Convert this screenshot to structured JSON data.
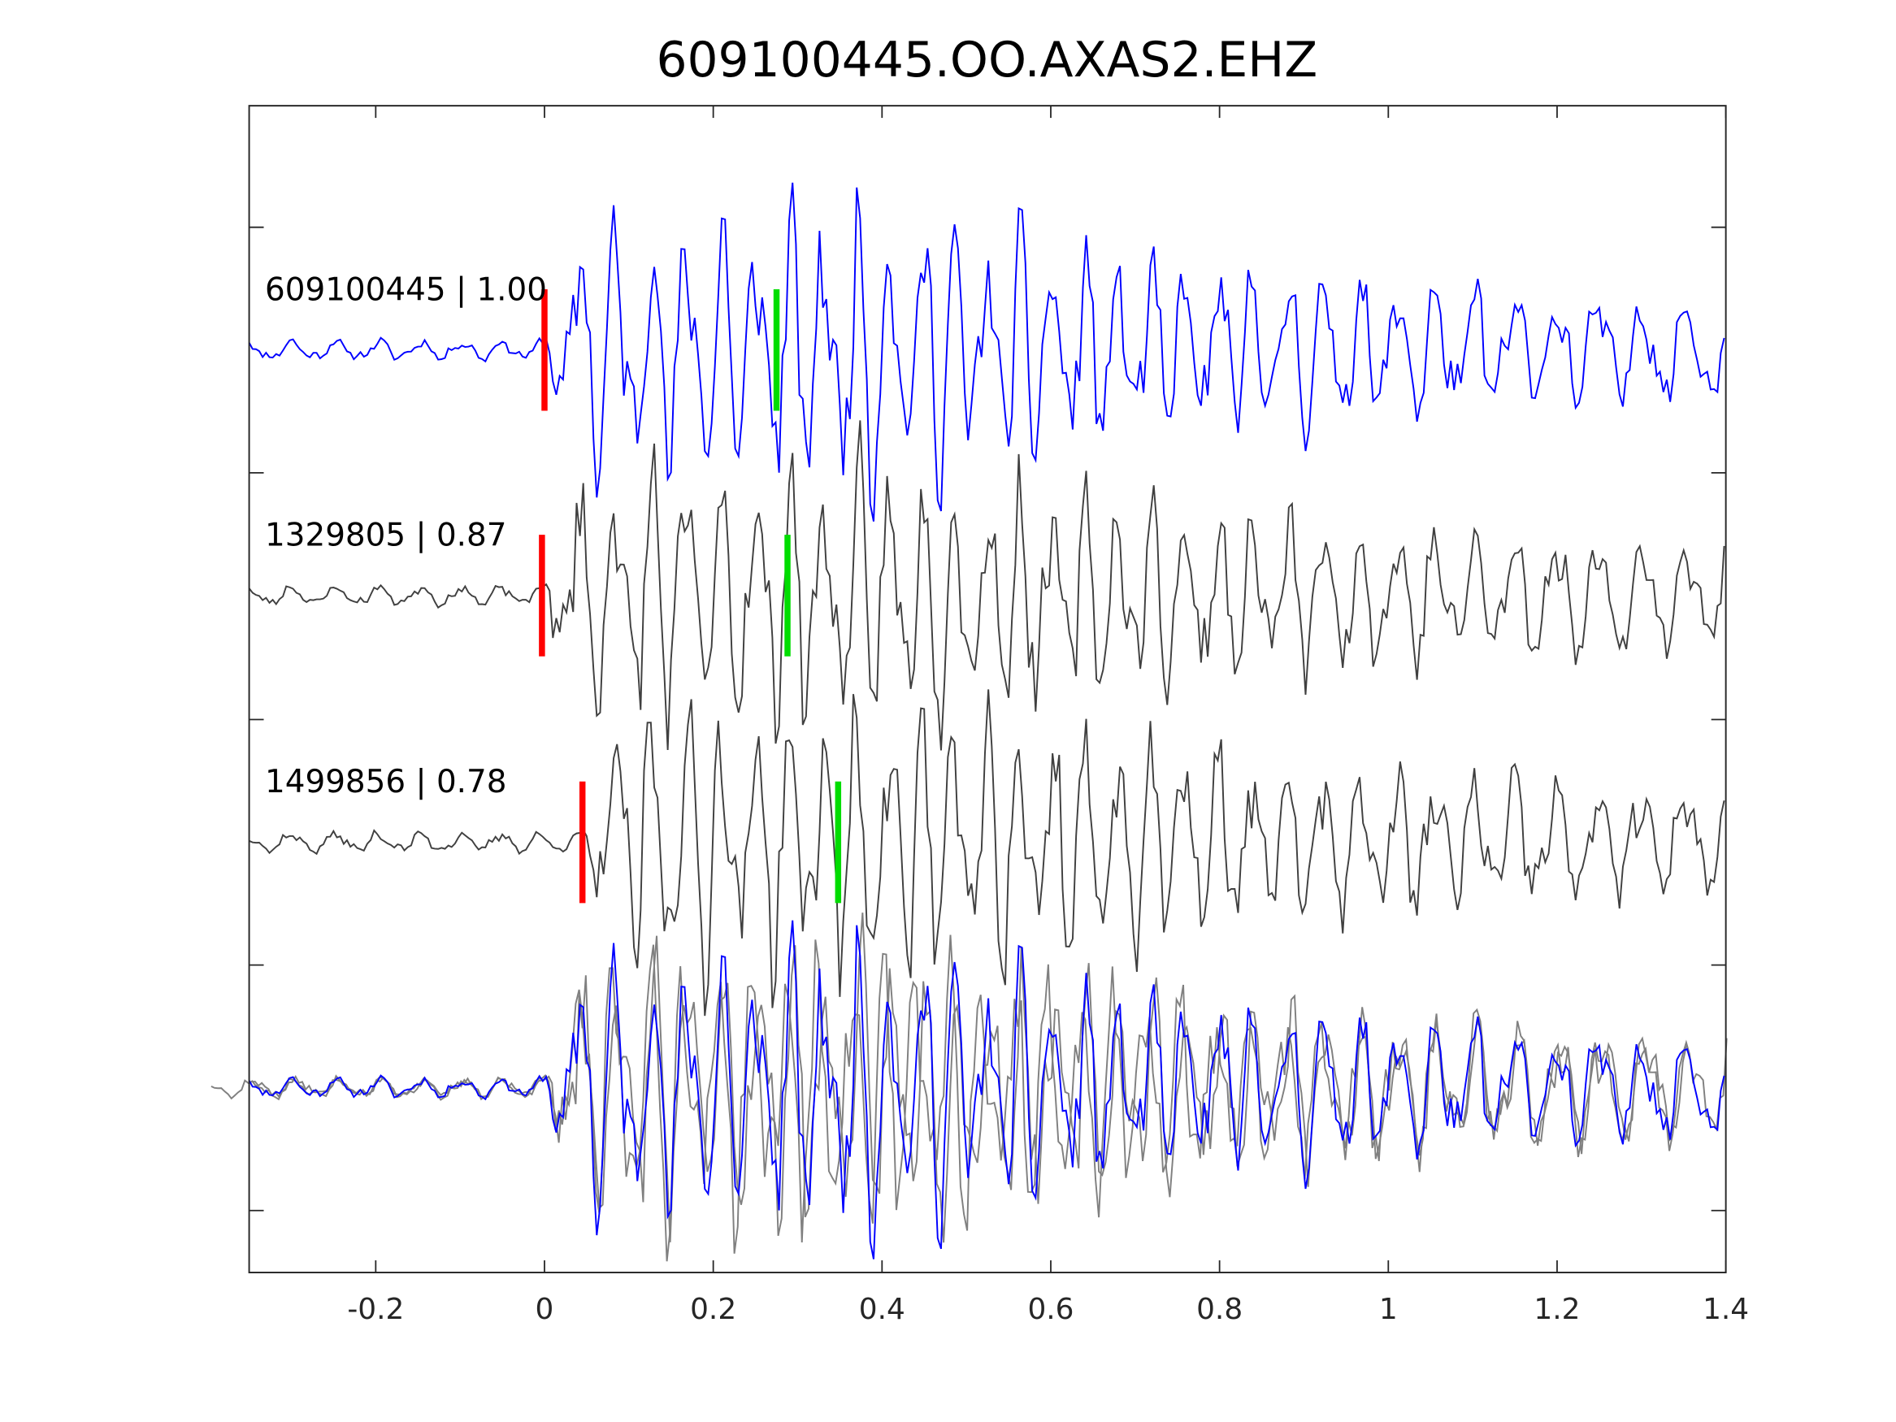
{
  "chart_data": {
    "type": "line",
    "title": "609100445.OO.AXAS2.EHZ",
    "xlabel": "",
    "ylabel": "",
    "xlim": [
      -0.35,
      1.4
    ],
    "xticks": [
      -0.2,
      0,
      0.2,
      0.4,
      0.6,
      0.8,
      1,
      1.2,
      1.4
    ],
    "xtick_labels": [
      "-0.2",
      "0",
      "0.2",
      "0.4",
      "0.6",
      "0.8",
      "1",
      "1.2",
      "1.4"
    ],
    "grid": false,
    "traces": [
      {
        "label": "609100445 | 1.00",
        "event_id": "609100445",
        "correlation": 1.0,
        "color": "#0000ff",
        "p_pick": 0.0,
        "s_pick": 0.275,
        "seed": 11
      },
      {
        "label": "1329805 | 0.87",
        "event_id": "1329805",
        "correlation": 0.87,
        "color": "#404040",
        "p_pick": -0.003,
        "s_pick": 0.288,
        "seed": 23
      },
      {
        "label": "1499856 | 0.78",
        "event_id": "1499856",
        "correlation": 0.78,
        "color": "#404040",
        "p_pick": 0.045,
        "s_pick": 0.348,
        "seed": 37
      }
    ],
    "overlay": {
      "colors": [
        "#0000ff",
        "#808080",
        "#808080"
      ]
    },
    "pick_colors": {
      "p": "#ff0000",
      "s": "#00dd00"
    }
  }
}
